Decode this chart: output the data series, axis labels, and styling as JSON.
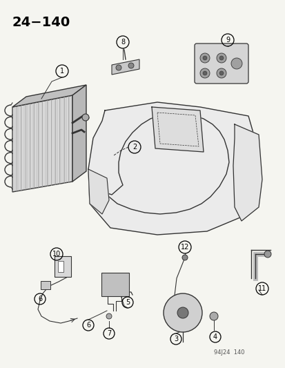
{
  "title": "24−140",
  "watermark": "94J24  140",
  "bg": "#f5f5f0",
  "lc": "#333333",
  "figsize": [
    4.14,
    5.33
  ],
  "dpi": 100,
  "xlim": [
    0,
    414
  ],
  "ylim": [
    0,
    533
  ]
}
